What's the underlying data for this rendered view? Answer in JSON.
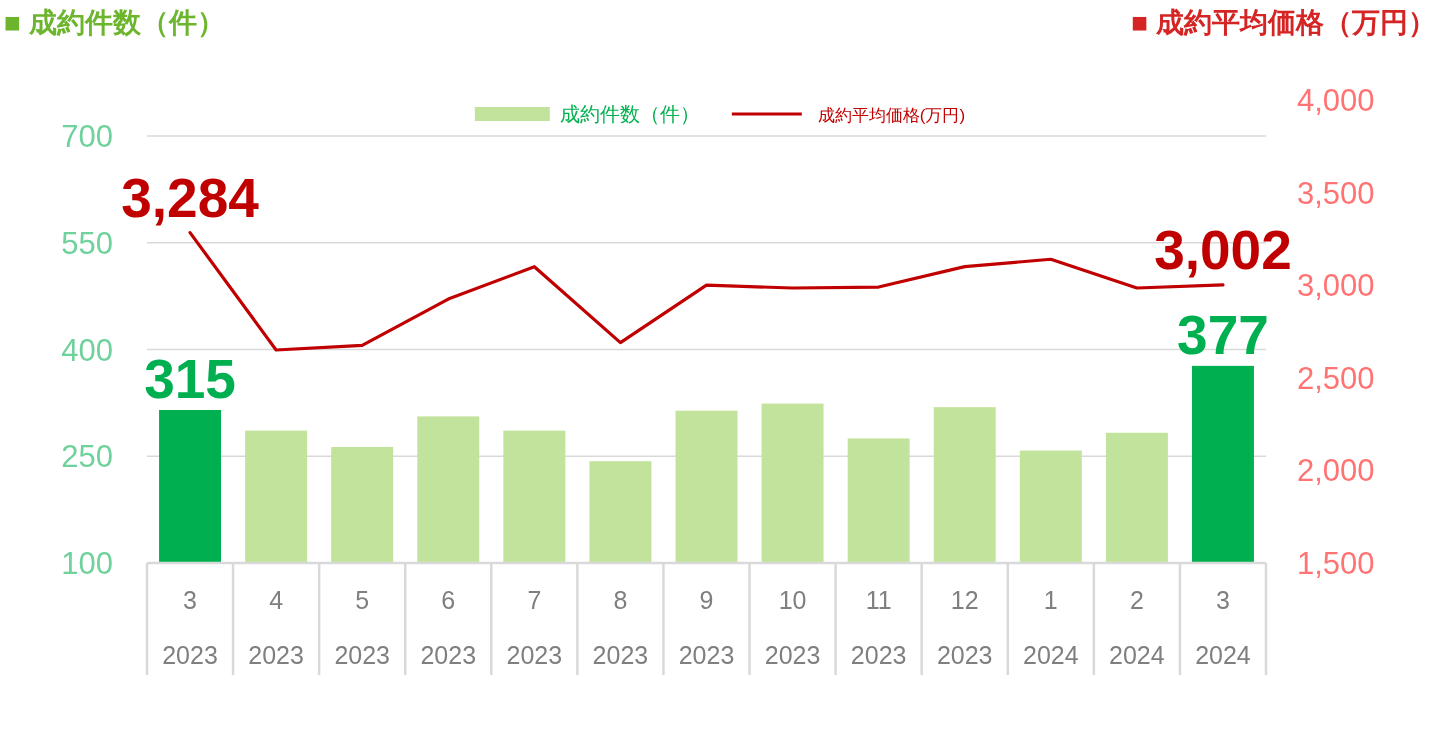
{
  "chart_data": {
    "type": "bar",
    "ylabel": "■ 成約件数（件）",
    "y2label": "■ 成約平均価格（万円）",
    "categories": [
      "3\n2023",
      "4\n2023",
      "5\n2023",
      "6\n2023",
      "7\n2023",
      "8\n2023",
      "9\n2023",
      "10\n2023",
      "11\n2023",
      "12\n2023",
      "1\n2024",
      "2\n2024",
      "3\n2024"
    ],
    "series": [
      {
        "name": "成約件数（件）",
        "color": "#c2e39b",
        "colors": [
          "#00b050",
          "#c2e39b",
          "#c2e39b",
          "#c2e39b",
          "#c2e39b",
          "#c2e39b",
          "#c2e39b",
          "#c2e39b",
          "#c2e39b",
          "#c2e39b",
          "#c2e39b",
          "#c2e39b",
          "#00b050"
        ],
        "values": [
          315,
          286,
          263,
          306,
          286,
          243,
          314,
          324,
          275,
          319,
          258,
          283,
          377
        ],
        "value_labels": [
          "315",
          null,
          null,
          null,
          null,
          null,
          null,
          null,
          null,
          null,
          null,
          null,
          "377"
        ]
      },
      {
        "name": "成約平均価格(万円)",
        "type": "line",
        "axis": "y2",
        "color": "#c00000",
        "values": [
          3284,
          2650,
          2675,
          2925,
          3100,
          2690,
          3000,
          2985,
          2990,
          3100,
          3140,
          2985,
          3002
        ],
        "value_labels": [
          "3,284",
          null,
          null,
          null,
          null,
          null,
          null,
          null,
          null,
          null,
          null,
          null,
          "3,002"
        ]
      }
    ],
    "ylim": [
      100,
      700
    ],
    "yticks": [
      100,
      250,
      400,
      550,
      700
    ],
    "y2lim": [
      1500,
      4000
    ],
    "y2ticks": [
      {
        "value": 1500,
        "label": "1,500"
      },
      {
        "value": 2000,
        "label": "2,000"
      },
      {
        "value": 2500,
        "label": "2,500"
      },
      {
        "value": 3000,
        "label": "3,000"
      },
      {
        "value": 3500,
        "label": "3,500"
      },
      {
        "value": 4000,
        "label": "4,000"
      }
    ],
    "grid": "y",
    "legend": "top"
  }
}
